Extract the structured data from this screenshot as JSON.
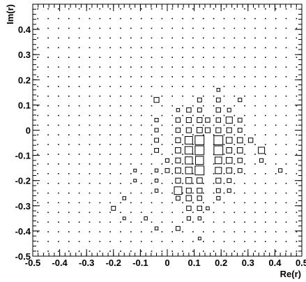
{
  "chart_data": {
    "type": "scatter",
    "subtype": "box-histogram",
    "title": "",
    "xlabel": "Re(r)",
    "ylabel": "Im(r)",
    "xlim": [
      -0.5,
      0.5
    ],
    "ylim": [
      -0.5,
      0.5
    ],
    "x_ticks": [
      -0.5,
      -0.4,
      -0.3,
      -0.2,
      -0.1,
      0,
      0.1,
      0.2,
      0.3,
      0.4,
      0.5
    ],
    "y_ticks": [
      -0.5,
      -0.4,
      -0.3,
      -0.2,
      -0.1,
      0,
      0.1,
      0.2,
      0.3,
      0.4
    ],
    "x_tick_labels": [
      "-0.5",
      "-0.4",
      "-0.3",
      "-0.2",
      "-0.1",
      "0",
      "0.1",
      "0.2",
      "0.3",
      "0.4",
      "0.5"
    ],
    "y_tick_labels": [
      "-0.5",
      "-0.4",
      "-0.3",
      "-0.2",
      "-0.1",
      "0",
      "0.1",
      "0.2",
      "0.3",
      "0.4"
    ],
    "bins": {
      "x_count": 26,
      "y_count": 26
    },
    "cells": [
      {
        "x": 0.19,
        "y": 0.16,
        "w": 0.35
      },
      {
        "x": -0.04,
        "y": 0.12,
        "w": 0.55
      },
      {
        "x": 0.12,
        "y": 0.12,
        "w": 0.45
      },
      {
        "x": 0.19,
        "y": 0.12,
        "w": 0.45
      },
      {
        "x": 0.27,
        "y": 0.12,
        "w": 0.4
      },
      {
        "x": 0.04,
        "y": 0.08,
        "w": 0.35
      },
      {
        "x": 0.08,
        "y": 0.08,
        "w": 0.5
      },
      {
        "x": 0.12,
        "y": 0.08,
        "w": 0.45
      },
      {
        "x": 0.19,
        "y": 0.08,
        "w": 0.5
      },
      {
        "x": 0.23,
        "y": 0.08,
        "w": 0.4
      },
      {
        "x": -0.04,
        "y": 0.04,
        "w": 0.4
      },
      {
        "x": 0.04,
        "y": 0.04,
        "w": 0.5
      },
      {
        "x": 0.08,
        "y": 0.04,
        "w": 0.55
      },
      {
        "x": 0.12,
        "y": 0.04,
        "w": 0.55
      },
      {
        "x": 0.15,
        "y": 0.04,
        "w": 0.5
      },
      {
        "x": 0.19,
        "y": 0.04,
        "w": 0.5
      },
      {
        "x": 0.23,
        "y": 0.04,
        "w": 0.7
      },
      {
        "x": 0.27,
        "y": 0.04,
        "w": 0.45
      },
      {
        "x": -0.04,
        "y": 0.0,
        "w": 0.4
      },
      {
        "x": 0.04,
        "y": 0.0,
        "w": 0.5
      },
      {
        "x": 0.08,
        "y": 0.0,
        "w": 0.55
      },
      {
        "x": 0.12,
        "y": 0.0,
        "w": 0.6
      },
      {
        "x": 0.15,
        "y": 0.0,
        "w": 0.55
      },
      {
        "x": 0.19,
        "y": 0.0,
        "w": 0.55
      },
      {
        "x": 0.23,
        "y": 0.0,
        "w": 0.55
      },
      {
        "x": 0.27,
        "y": 0.0,
        "w": 0.45
      },
      {
        "x": -0.04,
        "y": -0.04,
        "w": 0.45
      },
      {
        "x": 0.04,
        "y": -0.04,
        "w": 0.55
      },
      {
        "x": 0.08,
        "y": -0.04,
        "w": 0.85
      },
      {
        "x": 0.12,
        "y": -0.04,
        "w": 1.0
      },
      {
        "x": 0.19,
        "y": -0.04,
        "w": 1.0
      },
      {
        "x": 0.23,
        "y": -0.04,
        "w": 0.65
      },
      {
        "x": 0.27,
        "y": -0.04,
        "w": 0.6
      },
      {
        "x": 0.31,
        "y": -0.04,
        "w": 0.5
      },
      {
        "x": -0.04,
        "y": -0.08,
        "w": 0.45
      },
      {
        "x": 0.04,
        "y": -0.08,
        "w": 0.6
      },
      {
        "x": 0.08,
        "y": -0.08,
        "w": 0.85
      },
      {
        "x": 0.12,
        "y": -0.08,
        "w": 1.0
      },
      {
        "x": 0.19,
        "y": -0.08,
        "w": 1.0
      },
      {
        "x": 0.23,
        "y": -0.08,
        "w": 0.6
      },
      {
        "x": 0.27,
        "y": -0.08,
        "w": 0.6
      },
      {
        "x": 0.35,
        "y": -0.08,
        "w": 0.7
      },
      {
        "x": 0.0,
        "y": -0.12,
        "w": 0.4
      },
      {
        "x": 0.04,
        "y": -0.12,
        "w": 0.55
      },
      {
        "x": 0.08,
        "y": -0.12,
        "w": 0.8
      },
      {
        "x": 0.12,
        "y": -0.12,
        "w": 0.9
      },
      {
        "x": 0.19,
        "y": -0.12,
        "w": 0.75
      },
      {
        "x": 0.23,
        "y": -0.12,
        "w": 0.65
      },
      {
        "x": 0.27,
        "y": -0.12,
        "w": 0.5
      },
      {
        "x": 0.35,
        "y": -0.12,
        "w": 0.4
      },
      {
        "x": -0.12,
        "y": -0.16,
        "w": 0.3
      },
      {
        "x": -0.04,
        "y": -0.16,
        "w": 0.35
      },
      {
        "x": 0.0,
        "y": -0.16,
        "w": 0.45
      },
      {
        "x": 0.04,
        "y": -0.16,
        "w": 0.6
      },
      {
        "x": 0.08,
        "y": -0.16,
        "w": 0.75
      },
      {
        "x": 0.12,
        "y": -0.16,
        "w": 1.0
      },
      {
        "x": 0.19,
        "y": -0.16,
        "w": 0.7
      },
      {
        "x": 0.23,
        "y": -0.16,
        "w": 0.6
      },
      {
        "x": 0.27,
        "y": -0.16,
        "w": 0.45
      },
      {
        "x": 0.42,
        "y": -0.16,
        "w": 0.4
      },
      {
        "x": -0.12,
        "y": -0.2,
        "w": 0.3
      },
      {
        "x": -0.04,
        "y": -0.2,
        "w": 0.35
      },
      {
        "x": 0.04,
        "y": -0.2,
        "w": 0.55
      },
      {
        "x": 0.08,
        "y": -0.2,
        "w": 0.65
      },
      {
        "x": 0.12,
        "y": -0.2,
        "w": 0.6
      },
      {
        "x": 0.19,
        "y": -0.2,
        "w": 0.55
      },
      {
        "x": 0.23,
        "y": -0.2,
        "w": 0.45
      },
      {
        "x": -0.04,
        "y": -0.24,
        "w": 0.35
      },
      {
        "x": 0.04,
        "y": -0.24,
        "w": 0.85
      },
      {
        "x": 0.08,
        "y": -0.24,
        "w": 0.55
      },
      {
        "x": 0.12,
        "y": -0.24,
        "w": 0.55
      },
      {
        "x": 0.19,
        "y": -0.24,
        "w": 0.45
      },
      {
        "x": 0.23,
        "y": -0.24,
        "w": 0.4
      },
      {
        "x": -0.16,
        "y": -0.27,
        "w": 0.35
      },
      {
        "x": 0.04,
        "y": -0.27,
        "w": 0.45
      },
      {
        "x": 0.08,
        "y": -0.27,
        "w": 0.6
      },
      {
        "x": 0.12,
        "y": -0.27,
        "w": 0.5
      },
      {
        "x": 0.19,
        "y": -0.27,
        "w": 0.4
      },
      {
        "x": -0.2,
        "y": -0.31,
        "w": 0.45
      },
      {
        "x": 0.08,
        "y": -0.31,
        "w": 0.5
      },
      {
        "x": 0.12,
        "y": -0.31,
        "w": 0.5
      },
      {
        "x": 0.15,
        "y": -0.31,
        "w": 0.35
      },
      {
        "x": -0.16,
        "y": -0.35,
        "w": 0.3
      },
      {
        "x": -0.08,
        "y": -0.35,
        "w": 0.35
      },
      {
        "x": 0.08,
        "y": -0.35,
        "w": 0.4
      },
      {
        "x": 0.12,
        "y": -0.35,
        "w": 0.35
      },
      {
        "x": -0.04,
        "y": -0.39,
        "w": 0.35
      },
      {
        "x": 0.04,
        "y": -0.39,
        "w": 0.45
      },
      {
        "x": 0.12,
        "y": -0.43,
        "w": 0.3
      }
    ],
    "background_points": "small dot markers at every bin center",
    "grid": false,
    "colors": {
      "stroke": "#000000",
      "background": "#ffffff"
    }
  }
}
